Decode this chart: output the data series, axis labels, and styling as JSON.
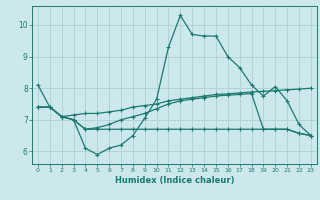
{
  "xlabel": "Humidex (Indice chaleur)",
  "bg_color": "#cce8ec",
  "grid_color": "#b0d0d4",
  "line_color": "#1a7a6e",
  "xlim": [
    -0.5,
    23.5
  ],
  "ylim": [
    5.6,
    10.6
  ],
  "yticks": [
    6,
    7,
    8,
    9,
    10
  ],
  "xticks": [
    0,
    1,
    2,
    3,
    4,
    5,
    6,
    7,
    8,
    9,
    10,
    11,
    12,
    13,
    14,
    15,
    16,
    17,
    18,
    19,
    20,
    21,
    22,
    23
  ],
  "line1_y": [
    8.1,
    7.4,
    7.1,
    7.0,
    6.1,
    5.9,
    6.1,
    6.2,
    6.5,
    7.05,
    7.65,
    9.3,
    10.3,
    9.7,
    9.65,
    9.65,
    9.0,
    8.65,
    8.1,
    7.75,
    8.05,
    7.6,
    6.85,
    6.5
  ],
  "line2_y": [
    7.4,
    7.4,
    7.1,
    7.15,
    7.2,
    7.2,
    7.25,
    7.3,
    7.4,
    7.45,
    7.5,
    7.6,
    7.65,
    7.7,
    7.75,
    7.8,
    7.82,
    7.85,
    7.88,
    7.9,
    7.92,
    7.95,
    7.97,
    8.0
  ],
  "line3_y": [
    7.4,
    7.4,
    7.1,
    7.0,
    6.7,
    6.75,
    6.85,
    7.0,
    7.1,
    7.2,
    7.35,
    7.5,
    7.6,
    7.65,
    7.7,
    7.75,
    7.78,
    7.8,
    7.83,
    6.7,
    6.7,
    6.7,
    6.57,
    6.5
  ],
  "line4_y": [
    7.4,
    7.4,
    7.1,
    7.0,
    6.7,
    6.7,
    6.7,
    6.7,
    6.7,
    6.7,
    6.7,
    6.7,
    6.7,
    6.7,
    6.7,
    6.7,
    6.7,
    6.7,
    6.7,
    6.7,
    6.7,
    6.7,
    6.57,
    6.5
  ]
}
